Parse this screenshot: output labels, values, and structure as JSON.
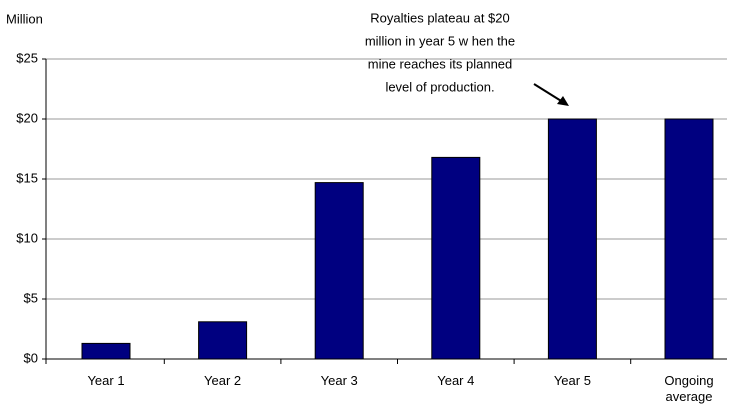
{
  "chart_data": {
    "type": "bar",
    "y_axis_label": "Million",
    "annotation": [
      "Royalties plateau at $20",
      "million in year 5 w hen the",
      "mine reaches its planned",
      "level of production."
    ],
    "categories": [
      "Year 1",
      "Year 2",
      "Year 3",
      "Year 4",
      "Year 5",
      "Ongoing average"
    ],
    "values": [
      1.3,
      3.1,
      14.7,
      16.8,
      20,
      20
    ],
    "color": "#000080",
    "ylim": [
      0,
      25
    ],
    "yticks": [
      {
        "value": 0,
        "label": "$0"
      },
      {
        "value": 5,
        "label": "$5"
      },
      {
        "value": 10,
        "label": "$10"
      },
      {
        "value": 15,
        "label": "$15"
      },
      {
        "value": 20,
        "label": "$20"
      },
      {
        "value": 25,
        "label": "$25"
      }
    ],
    "grid": true
  }
}
